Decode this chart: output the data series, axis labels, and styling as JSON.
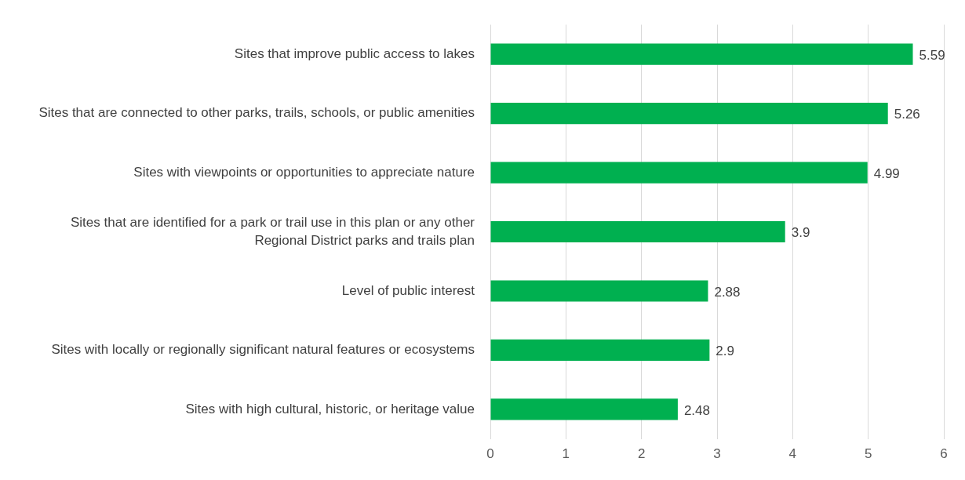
{
  "chart_data": {
    "type": "bar",
    "orientation": "horizontal",
    "categories": [
      "Sites that improve public access to lakes",
      "Sites that are connected to other parks, trails, schools, or public amenities",
      "Sites with viewpoints or opportunities to appreciate nature",
      "Sites that are identified for a park or trail use in this plan or any other Regional District parks and trails plan",
      "Level of public interest",
      "Sites with locally or regionally significant natural features or ecosystems",
      "Sites with high cultural, historic, or heritage value"
    ],
    "values": [
      5.59,
      5.26,
      4.99,
      3.9,
      2.88,
      2.9,
      2.48
    ],
    "color": "#00b050",
    "xlim": [
      0,
      6
    ],
    "xticks": [
      0,
      1,
      2,
      3,
      4,
      5,
      6
    ],
    "grid": "x",
    "data_labels": true,
    "legend": false
  }
}
